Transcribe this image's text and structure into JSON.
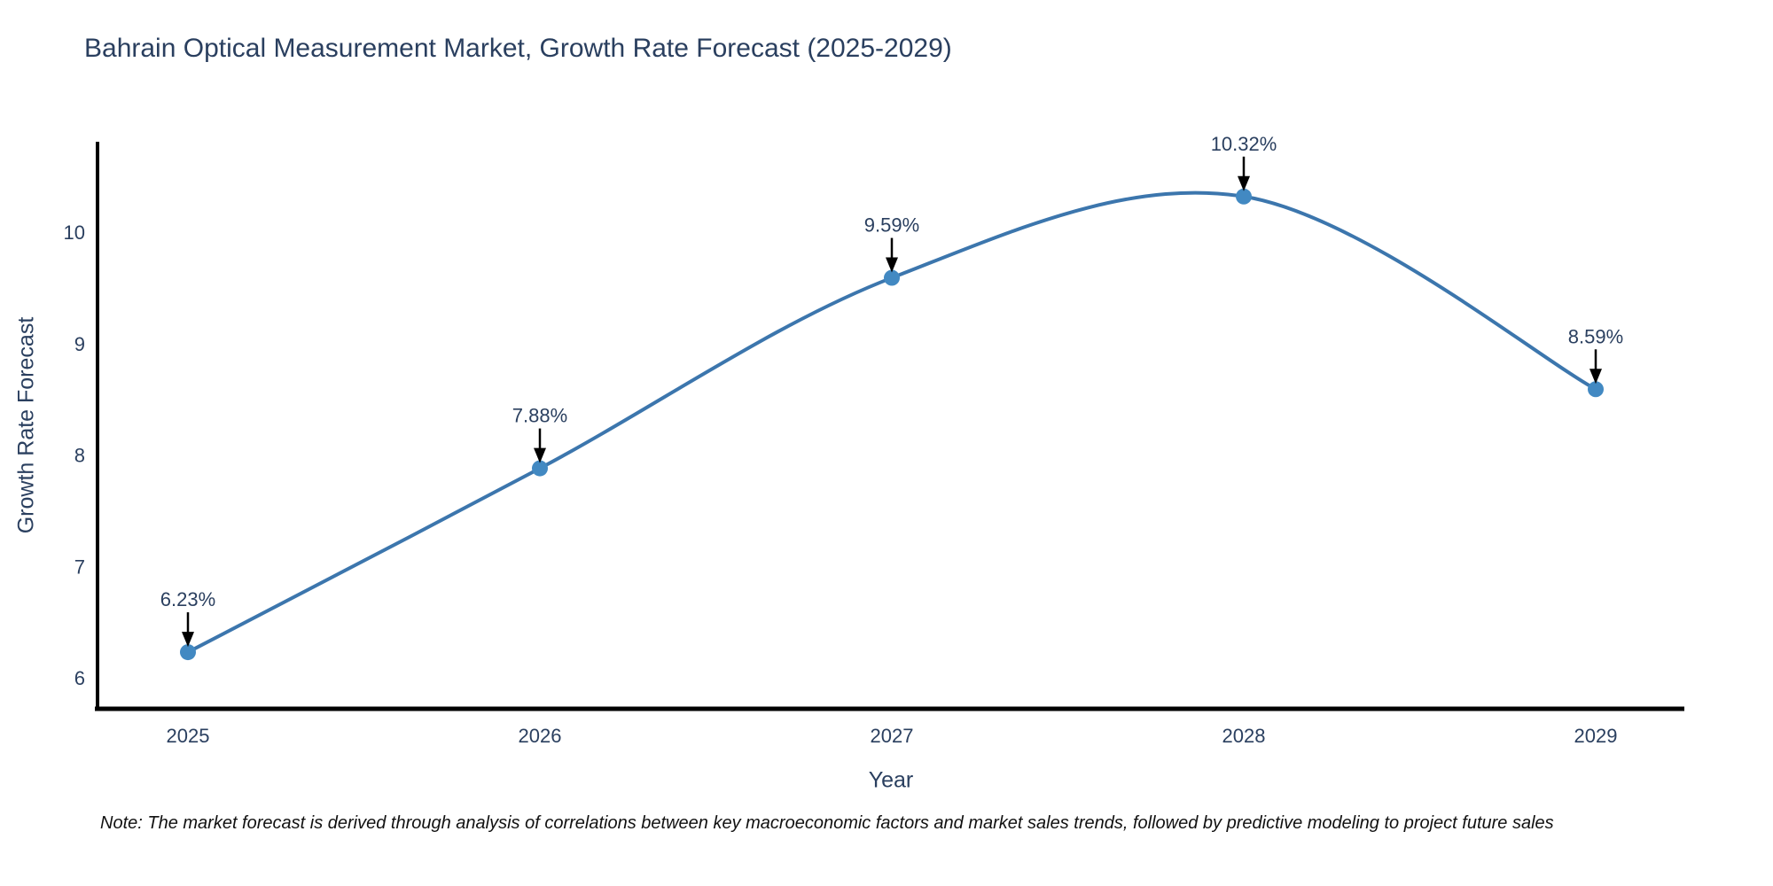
{
  "title": "Bahrain Optical Measurement Market, Growth Rate Forecast (2025-2029)",
  "note": "Note: The market forecast is derived through analysis of correlations between key macroeconomic factors and market sales trends, followed by predictive modeling to project future sales",
  "colors": {
    "line": "#3c76ad",
    "marker": "#4289c2",
    "text": "#2a3f5f",
    "axis": "#000000",
    "arrow": "#000000",
    "note_text": "#111111",
    "background": "#ffffff"
  },
  "chart_data": {
    "type": "line",
    "title": "Bahrain Optical Measurement Market, Growth Rate Forecast (2025-2029)",
    "xlabel": "Year",
    "ylabel": "Growth Rate Forecast",
    "x": [
      2025,
      2026,
      2027,
      2028,
      2029
    ],
    "values": [
      6.23,
      7.88,
      9.59,
      10.32,
      8.59
    ],
    "point_labels": [
      "6.23%",
      "7.88%",
      "9.59%",
      "10.32%",
      "8.59%"
    ],
    "yticks": [
      6,
      7,
      8,
      9,
      10
    ],
    "ylim": [
      5.72,
      10.81
    ],
    "line_shape": "spline",
    "grid": false,
    "legend_position": "none",
    "annotation_style": "label-with-down-arrow"
  }
}
